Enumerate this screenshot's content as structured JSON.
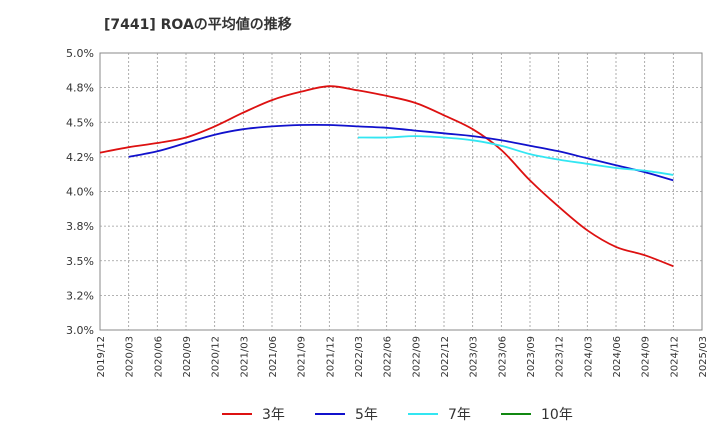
{
  "chart_data": {
    "type": "line",
    "title": "[7441]  ROAの平均値の推移",
    "xlabel": "",
    "ylabel": "",
    "ylim": [
      3.0,
      5.0
    ],
    "yticks": [
      "5.0%",
      "4.8%",
      "4.5%",
      "4.2%",
      "4.0%",
      "3.8%",
      "3.5%",
      "3.2%",
      "3.0%"
    ],
    "xticks": [
      "2019/12",
      "2020/03",
      "2020/06",
      "2020/09",
      "2020/12",
      "2021/03",
      "2021/06",
      "2021/09",
      "2021/12",
      "2022/03",
      "2022/06",
      "2022/09",
      "2022/12",
      "2023/03",
      "2023/06",
      "2023/09",
      "2023/12",
      "2024/03",
      "2024/06",
      "2024/09",
      "2024/12",
      "2025/03"
    ],
    "grid": true,
    "legend_position": "bottom",
    "series": [
      {
        "name": "3年",
        "color": "#dd1111",
        "x": [
          "2019/12",
          "2020/03",
          "2020/06",
          "2020/09",
          "2020/12",
          "2021/03",
          "2021/06",
          "2021/09",
          "2021/12",
          "2022/03",
          "2022/06",
          "2022/09",
          "2022/12",
          "2023/03",
          "2023/06",
          "2023/09",
          "2023/12",
          "2024/03",
          "2024/06",
          "2024/09",
          "2024/12"
        ],
        "values": [
          4.28,
          4.32,
          4.35,
          4.39,
          4.47,
          4.57,
          4.66,
          4.72,
          4.76,
          4.73,
          4.69,
          4.64,
          4.55,
          4.45,
          4.3,
          4.08,
          3.89,
          3.72,
          3.6,
          3.54,
          3.46
        ]
      },
      {
        "name": "5年",
        "color": "#1111cc",
        "x": [
          "2020/03",
          "2020/06",
          "2020/09",
          "2020/12",
          "2021/03",
          "2021/06",
          "2021/09",
          "2021/12",
          "2022/03",
          "2022/06",
          "2022/09",
          "2022/12",
          "2023/03",
          "2023/06",
          "2023/09",
          "2023/12",
          "2024/03",
          "2024/06",
          "2024/09",
          "2024/12"
        ],
        "values": [
          4.25,
          4.29,
          4.35,
          4.41,
          4.45,
          4.47,
          4.48,
          4.48,
          4.47,
          4.46,
          4.44,
          4.42,
          4.4,
          4.37,
          4.33,
          4.29,
          4.24,
          4.19,
          4.14,
          4.08
        ]
      },
      {
        "name": "7年",
        "color": "#33e6f2",
        "x": [
          "2022/03",
          "2022/06",
          "2022/09",
          "2022/12",
          "2023/03",
          "2023/06",
          "2023/09",
          "2023/12",
          "2024/03",
          "2024/06",
          "2024/09",
          "2024/12"
        ],
        "values": [
          4.39,
          4.39,
          4.4,
          4.39,
          4.37,
          4.33,
          4.27,
          4.23,
          4.2,
          4.17,
          4.15,
          4.12
        ]
      },
      {
        "name": "10年",
        "color": "#118811",
        "x": [],
        "values": []
      }
    ]
  }
}
